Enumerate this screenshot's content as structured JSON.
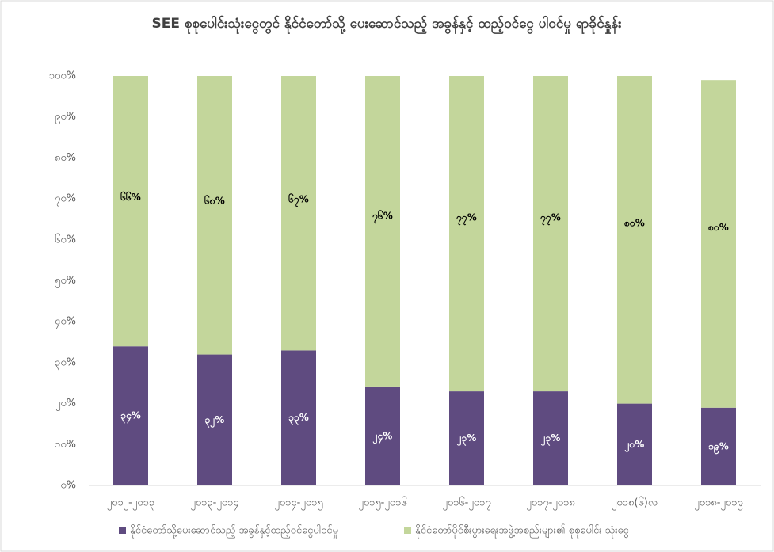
{
  "chart_data": {
    "type": "stacked_bar",
    "title": "SEE စုစုပေါင်းသုံးငွေတွင် နိုင်ငံတော်သို့ ပေးဆောင်သည့် အခွန်နှင့် ထည့်ဝင်ငွေ ပါဝင်မှု ရာခိုင်နှုန်း",
    "categories": [
      "၂၀၁၂-၂၀၁၃",
      "၂၀၁၃-၂၀၁၄",
      "၂၀၁၄-၂၀၁၅",
      "၂၀၁၅-၂၀၁၆",
      "၂၀၁၆-၂၀၁၇",
      "၂၀၁၇-၂၀၁၈",
      "၂၀၁၈(၆)လ",
      "၂၀၁၈-၂၀၁၉"
    ],
    "series": [
      {
        "name": "နိုင်ငံတော်သို့ပေးဆောင်သည့် အခွန်နှင့်ထည့်ဝင်ငွေပါဝင်မှု",
        "color": "#5f4b80",
        "values": [
          34,
          32,
          33,
          24,
          23,
          23,
          20,
          19
        ],
        "value_labels": [
          "၃၄%",
          "၃၂%",
          "၃၃%",
          "၂၄%",
          "၂၃%",
          "၂၃%",
          "၂၀%",
          "၁၉%"
        ]
      },
      {
        "name": "နိုင်ငံတော်ပိုင်စီးပွားရေးအဖွဲ့အစည်းများ၏ စုစုပေါင်း သုံးငွေ",
        "color": "#c3d69b",
        "values": [
          66,
          68,
          67,
          76,
          77,
          77,
          80,
          80
        ],
        "value_labels": [
          "၆၆%",
          "၆၈%",
          "၆၇%",
          "၇၆%",
          "၇၇%",
          "၇၇%",
          "၈၀%",
          "၈၀%"
        ]
      }
    ],
    "ylim": [
      0,
      100
    ],
    "yticks": [
      {
        "value": 0,
        "label": "၀%"
      },
      {
        "value": 10,
        "label": "၁၀%"
      },
      {
        "value": 20,
        "label": "၂၀%"
      },
      {
        "value": 30,
        "label": "၃၀%"
      },
      {
        "value": 40,
        "label": "၄၀%"
      },
      {
        "value": 50,
        "label": "၅၀%"
      },
      {
        "value": 60,
        "label": "၆၀%"
      },
      {
        "value": 70,
        "label": "၇၀%"
      },
      {
        "value": 80,
        "label": "၈၀%"
      },
      {
        "value": 90,
        "label": "၉၀%"
      },
      {
        "value": 100,
        "label": "၁၀၀%"
      }
    ],
    "legend": "bottom"
  }
}
